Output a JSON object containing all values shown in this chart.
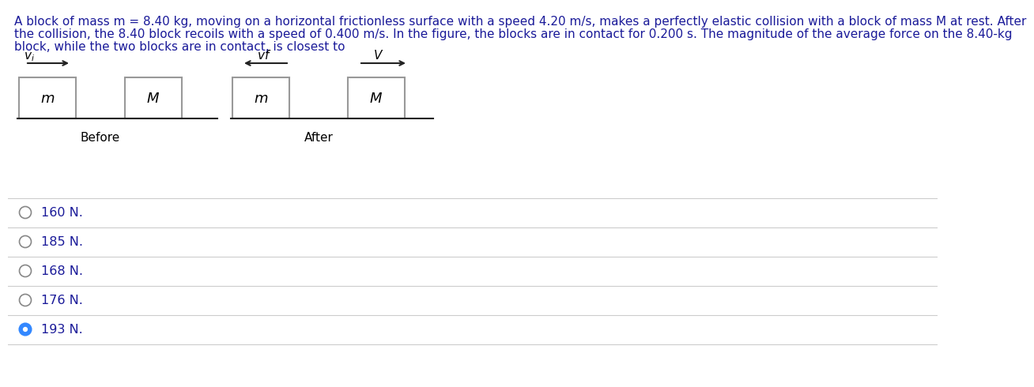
{
  "title_line1": "A block of mass m = 8.40 kg, moving on a horizontal frictionless surface with a speed 4.20 m/s, makes a perfectly elastic collision with a block of mass M at rest. After",
  "title_line2": "the collision, the 8.40 block recoils with a speed of 0.400 m/s. In the figure, the blocks are in contact for 0.200 s. The magnitude of the average force on the 8.40-kg",
  "title_line3": "block, while the two blocks are in contact, is closest to",
  "background_color": "#ffffff",
  "text_color": "#1a1a99",
  "title_fontsize": 11.0,
  "options": [
    "160 N.",
    "185 N.",
    "168 N.",
    "176 N.",
    "193 N."
  ],
  "selected_option": 4,
  "option_text_color": "#1a1a99",
  "separator_color": "#cccccc",
  "block_edge_color": "#999999",
  "block_fill": "#ffffff",
  "arrow_color": "#222222",
  "surface_color": "#222222"
}
